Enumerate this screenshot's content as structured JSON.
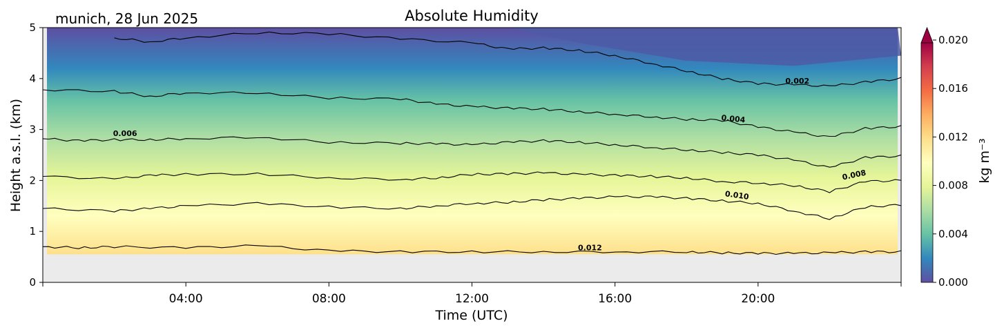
{
  "chart_data": {
    "type": "contour",
    "title": "Absolute Humidity",
    "location_label": "munich, 28 Jun 2025",
    "xlabel": "Time (UTC)",
    "ylabel": "Height a.s.l. (km)",
    "x_ticks": [
      "04:00",
      "08:00",
      "12:00",
      "16:00",
      "20:00"
    ],
    "x_tick_hours": [
      4,
      8,
      12,
      16,
      20
    ],
    "xlim_hours": [
      0,
      24
    ],
    "y_ticks": [
      "0",
      "1",
      "2",
      "3",
      "4",
      "5"
    ],
    "ylim_km": [
      0,
      5
    ],
    "ground_level_km": 0.55,
    "colorbar": {
      "label": "kg m⁻³",
      "ticks": [
        "0.000",
        "0.004",
        "0.008",
        "0.012",
        "0.016",
        "0.020"
      ],
      "range": [
        0.0,
        0.02
      ],
      "extend": "max",
      "colormap": "Spectral_r",
      "colors": [
        "#5e4fa2",
        "#3288bd",
        "#66c2a5",
        "#abdda4",
        "#e6f598",
        "#ffffbf",
        "#fee08b",
        "#fdae61",
        "#f46d43",
        "#d53e4f",
        "#9e0142"
      ]
    },
    "contour_levels": [
      0.002,
      0.004,
      0.006,
      0.008,
      0.01,
      0.012
    ],
    "contour_labels": [
      "0.002",
      "0.004",
      "0.006",
      "0.008",
      "0.010",
      "0.012"
    ],
    "contour_lines": [
      {
        "level": 0.002,
        "label_hour": 21.1,
        "label_km": 3.9,
        "label_angle": 0,
        "points": [
          [
            2,
            4.8
          ],
          [
            3,
            4.72
          ],
          [
            4,
            4.8
          ],
          [
            6,
            4.9
          ],
          [
            8,
            4.88
          ],
          [
            10,
            4.78
          ],
          [
            12,
            4.7
          ],
          [
            13,
            4.58
          ],
          [
            14,
            4.6
          ],
          [
            15,
            4.55
          ],
          [
            16,
            4.45
          ],
          [
            17,
            4.3
          ],
          [
            18,
            4.15
          ],
          [
            19,
            4.0
          ],
          [
            20,
            3.9
          ],
          [
            21,
            3.88
          ],
          [
            22,
            3.85
          ],
          [
            23,
            3.93
          ],
          [
            24,
            4.0
          ]
        ]
      },
      {
        "level": 0.004,
        "label_hour": 19.3,
        "label_km": 3.16,
        "label_angle": 6,
        "points": [
          [
            0,
            3.78
          ],
          [
            2,
            3.75
          ],
          [
            3,
            3.65
          ],
          [
            4,
            3.72
          ],
          [
            6,
            3.72
          ],
          [
            8,
            3.62
          ],
          [
            10,
            3.6
          ],
          [
            11,
            3.5
          ],
          [
            12,
            3.45
          ],
          [
            13,
            3.42
          ],
          [
            14,
            3.4
          ],
          [
            15,
            3.35
          ],
          [
            16,
            3.3
          ],
          [
            17,
            3.25
          ],
          [
            18,
            3.2
          ],
          [
            19,
            3.18
          ],
          [
            20,
            3.05
          ],
          [
            21,
            2.95
          ],
          [
            22,
            2.85
          ],
          [
            23,
            3.02
          ],
          [
            24,
            3.06
          ]
        ]
      },
      {
        "level": 0.006,
        "label_hour": 2.3,
        "label_km": 2.87,
        "label_angle": 0,
        "points": [
          [
            0,
            2.82
          ],
          [
            1,
            2.78
          ],
          [
            2,
            2.8
          ],
          [
            3,
            2.8
          ],
          [
            4,
            2.82
          ],
          [
            6,
            2.85
          ],
          [
            8,
            2.75
          ],
          [
            10,
            2.73
          ],
          [
            11,
            2.72
          ],
          [
            12,
            2.7
          ],
          [
            13,
            2.75
          ],
          [
            14,
            2.78
          ],
          [
            15,
            2.75
          ],
          [
            16,
            2.7
          ],
          [
            17,
            2.65
          ],
          [
            18,
            2.6
          ],
          [
            19,
            2.55
          ],
          [
            20,
            2.5
          ],
          [
            21,
            2.4
          ],
          [
            22,
            2.25
          ],
          [
            23,
            2.45
          ],
          [
            24,
            2.48
          ]
        ]
      },
      {
        "level": 0.008,
        "label_hour": 22.7,
        "label_km": 2.06,
        "label_angle": -12,
        "points": [
          [
            0,
            2.08
          ],
          [
            2,
            2.03
          ],
          [
            3,
            2.1
          ],
          [
            4,
            2.12
          ],
          [
            6,
            2.13
          ],
          [
            8,
            2.05
          ],
          [
            10,
            2.02
          ],
          [
            11,
            2.05
          ],
          [
            12,
            2.12
          ],
          [
            13,
            2.13
          ],
          [
            14,
            2.15
          ],
          [
            15,
            2.12
          ],
          [
            16,
            2.1
          ],
          [
            17,
            2.08
          ],
          [
            18,
            2.05
          ],
          [
            19,
            1.98
          ],
          [
            20,
            1.95
          ],
          [
            21,
            1.9
          ],
          [
            22,
            1.78
          ],
          [
            23,
            1.98
          ],
          [
            24,
            2.0
          ]
        ]
      },
      {
        "level": 0.01,
        "label_hour": 19.4,
        "label_km": 1.66,
        "label_angle": 8,
        "points": [
          [
            0,
            1.45
          ],
          [
            2,
            1.4
          ],
          [
            3,
            1.45
          ],
          [
            4,
            1.5
          ],
          [
            6,
            1.55
          ],
          [
            8,
            1.48
          ],
          [
            10,
            1.45
          ],
          [
            11,
            1.5
          ],
          [
            12,
            1.55
          ],
          [
            13,
            1.57
          ],
          [
            14,
            1.62
          ],
          [
            15,
            1.65
          ],
          [
            16,
            1.68
          ],
          [
            17,
            1.68
          ],
          [
            18,
            1.65
          ],
          [
            19,
            1.6
          ],
          [
            20,
            1.55
          ],
          [
            21,
            1.4
          ],
          [
            22,
            1.25
          ],
          [
            23,
            1.48
          ],
          [
            24,
            1.52
          ]
        ]
      },
      {
        "level": 0.012,
        "label_hour": 15.3,
        "label_km": 0.63,
        "label_angle": 0,
        "points": [
          [
            0,
            0.7
          ],
          [
            1,
            0.68
          ],
          [
            2,
            0.7
          ],
          [
            4,
            0.68
          ],
          [
            6,
            0.72
          ],
          [
            8,
            0.62
          ],
          [
            10,
            0.6
          ],
          [
            12,
            0.6
          ],
          [
            14,
            0.6
          ],
          [
            16,
            0.6
          ],
          [
            18,
            0.6
          ],
          [
            19,
            0.58
          ],
          [
            20,
            0.57
          ],
          [
            21,
            0.57
          ],
          [
            22,
            0.58
          ],
          [
            23,
            0.6
          ],
          [
            24,
            0.6
          ]
        ]
      }
    ]
  }
}
